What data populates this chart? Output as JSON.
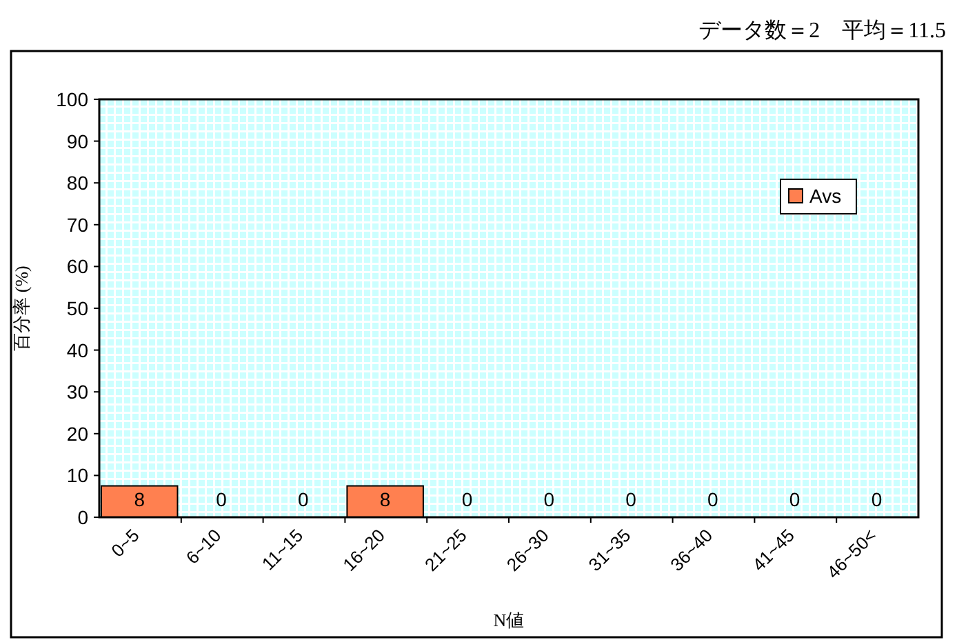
{
  "chart_data": {
    "type": "bar",
    "title": "データ数＝2　平均＝11.5",
    "ylabel": "百分率 (%)",
    "xlabel": "N値",
    "categories": [
      "0~5",
      "6~10",
      "11~15",
      "16~20",
      "21~25",
      "26~30",
      "31~35",
      "36~40",
      "41~45",
      "46~50<"
    ],
    "series": [
      {
        "name": "Avs",
        "color": "#ff8050",
        "values": [
          7.5,
          0,
          0,
          7.5,
          0,
          0,
          0,
          0,
          0,
          0
        ],
        "value_labels": [
          "8",
          "0",
          "0",
          "8",
          "0",
          "0",
          "0",
          "0",
          "0",
          "0"
        ]
      }
    ],
    "ylim": [
      0,
      100
    ],
    "yticks": [
      0,
      10,
      20,
      30,
      40,
      50,
      60,
      70,
      80,
      90,
      100
    ],
    "legend": "top right"
  }
}
